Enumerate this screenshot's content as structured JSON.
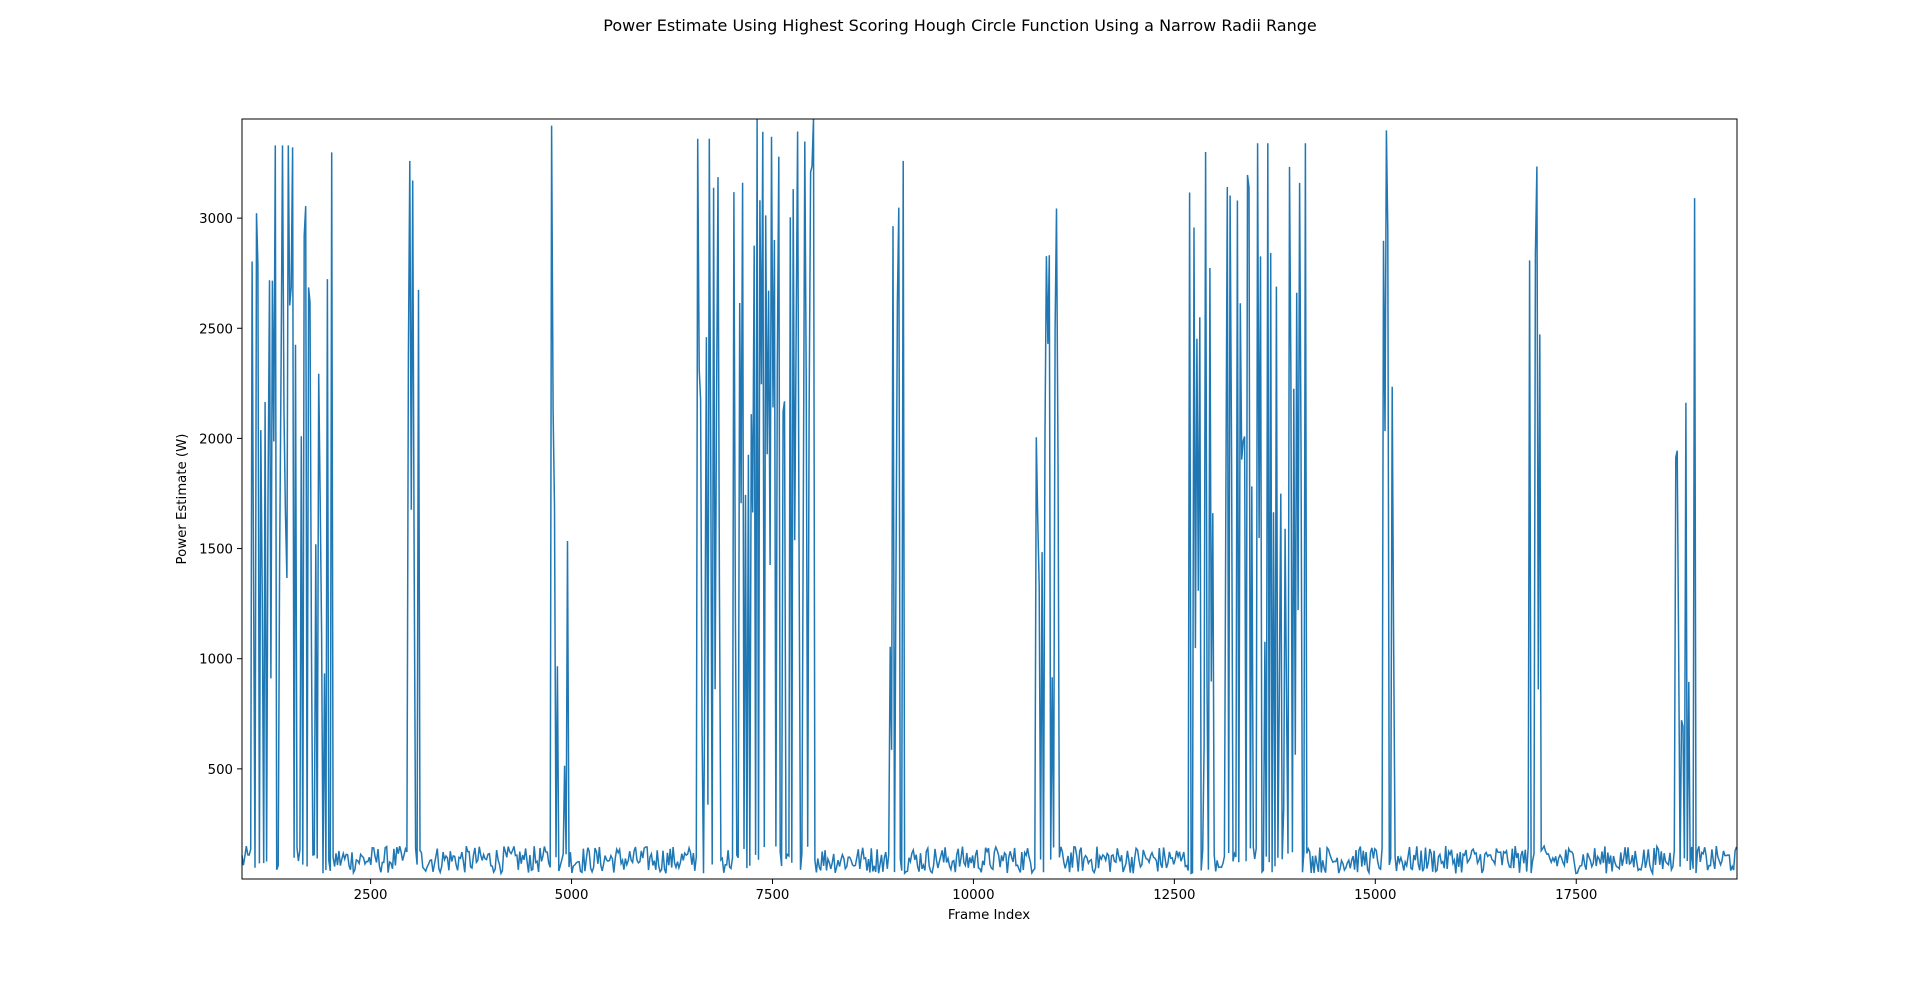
{
  "chart_data": {
    "type": "line",
    "title": "Power Estimate Using Highest Scoring Hough Circle Function Using a Narrow Radii Range",
    "xlabel": "Frame Index",
    "ylabel": "Power Estimate (W)",
    "xlim": [
      900,
      19500
    ],
    "ylim": [
      0,
      3450
    ],
    "xticks": [
      2500,
      5000,
      7500,
      10000,
      12500,
      15000,
      17500
    ],
    "yticks": [
      500,
      1000,
      1500,
      2000,
      2500,
      3000
    ],
    "grid": false,
    "line_color": "#1f77b4",
    "baseline": {
      "low": 25,
      "high": 150
    },
    "series": [
      {
        "active_segments": [
          {
            "start": 1000,
            "end": 2050,
            "min": 150,
            "max": 3330
          },
          {
            "start": 2950,
            "end": 3130,
            "min": 250,
            "max": 3260
          },
          {
            "start": 4750,
            "end": 4960,
            "min": 280,
            "max": 3420
          },
          {
            "start": 6560,
            "end": 6840,
            "min": 200,
            "max": 3360
          },
          {
            "start": 7020,
            "end": 8040,
            "min": 150,
            "max": 3460
          },
          {
            "start": 8950,
            "end": 9130,
            "min": 250,
            "max": 3260
          },
          {
            "start": 10750,
            "end": 11060,
            "min": 250,
            "max": 3240
          },
          {
            "start": 12680,
            "end": 12990,
            "min": 200,
            "max": 3300
          },
          {
            "start": 13140,
            "end": 14200,
            "min": 150,
            "max": 3340
          },
          {
            "start": 15100,
            "end": 15260,
            "min": 250,
            "max": 3460
          },
          {
            "start": 16900,
            "end": 17060,
            "min": 250,
            "max": 3260
          },
          {
            "start": 18700,
            "end": 18980,
            "min": 250,
            "max": 3290
          }
        ]
      }
    ]
  }
}
